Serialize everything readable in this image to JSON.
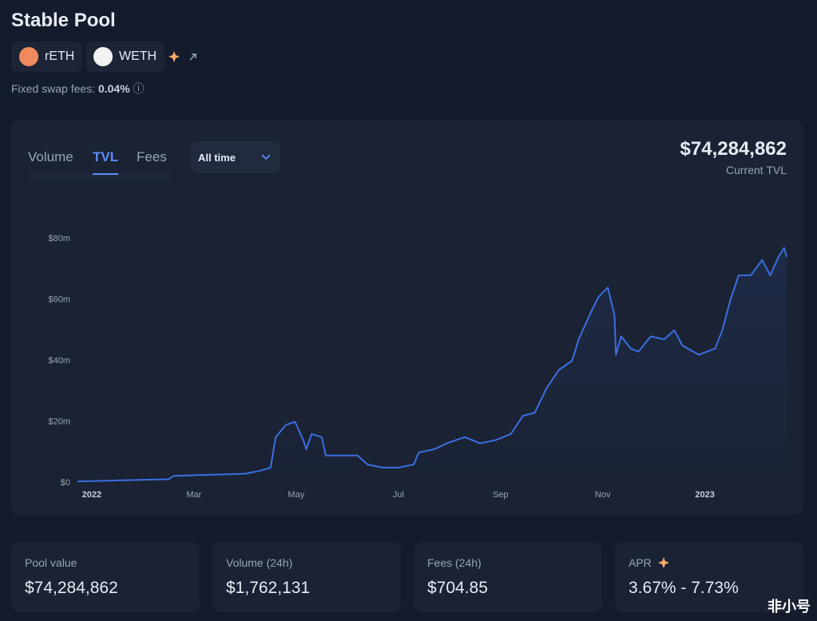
{
  "header": {
    "title": "Stable Pool",
    "tokens": [
      "rETH",
      "WETH"
    ],
    "fees_label": "Fixed swap fees:",
    "fees_value": "0.04%"
  },
  "tabs": {
    "items": [
      "Volume",
      "TVL",
      "Fees"
    ],
    "active": 1
  },
  "dropdown": "All time",
  "current": {
    "value": "$74,284,862",
    "label": "Current TVL"
  },
  "chart_data": {
    "type": "line",
    "color": "#3b6fe0",
    "grid": false,
    "x": [
      -0.28,
      0.5,
      1.5,
      1.6,
      2,
      3,
      3.3,
      3.5,
      3.6,
      3.8,
      3.98,
      4.14,
      4.2,
      4.3,
      4.5,
      4.58,
      4.9,
      5.2,
      5.4,
      5.7,
      6,
      6.3,
      6.4,
      6.7,
      6.95,
      7.3,
      7.6,
      7.9,
      8.2,
      8.44,
      8.67,
      8.9,
      9.14,
      9.4,
      9.53,
      9.77,
      9.92,
      10.1,
      10.23,
      10.26,
      10.36,
      10.55,
      10.7,
      10.94,
      11.2,
      11.4,
      11.56,
      11.88,
      12.2,
      12.34,
      12.5,
      12.66,
      12.9,
      13.12,
      13.28,
      13.44,
      13.55,
      13.6
    ],
    "values": [
      0.5,
      0.8,
      1.2,
      2.3,
      2.5,
      3,
      4,
      5,
      15,
      19,
      20,
      14,
      11,
      16,
      15,
      9,
      9,
      9,
      6,
      5,
      5,
      6,
      10,
      11,
      13,
      15,
      13,
      14,
      16,
      22,
      23,
      31,
      37,
      40,
      47,
      56,
      61,
      64,
      55,
      42,
      48,
      44,
      43,
      48,
      47,
      50,
      45,
      42,
      44,
      50,
      60,
      68,
      68,
      73,
      68,
      74,
      77,
      74
    ],
    "xlim": [
      -0.28,
      13.6
    ],
    "xticks": [
      {
        "value": 0,
        "label": "2022"
      },
      {
        "value": 2,
        "label": "Mar"
      },
      {
        "value": 4,
        "label": "May"
      },
      {
        "value": 6,
        "label": "Jul"
      },
      {
        "value": 8,
        "label": "Sep"
      },
      {
        "value": 10,
        "label": "Nov"
      },
      {
        "value": 12,
        "label": "2023"
      }
    ],
    "ylim": [
      0,
      80
    ],
    "yticks": [
      {
        "value": 0,
        "label": "$0"
      },
      {
        "value": 20,
        "label": "$20m"
      },
      {
        "value": 40,
        "label": "$40m"
      },
      {
        "value": 60,
        "label": "$60m"
      },
      {
        "value": 80,
        "label": "$80m"
      }
    ]
  },
  "cards": [
    {
      "label": "Pool value",
      "value": "$74,284,862"
    },
    {
      "label": "Volume (24h)",
      "value": "$1,762,131"
    },
    {
      "label": "Fees (24h)",
      "value": "$704.85"
    },
    {
      "label": "APR",
      "value": "3.67% - 7.73%"
    }
  ],
  "watermark": "非小号"
}
